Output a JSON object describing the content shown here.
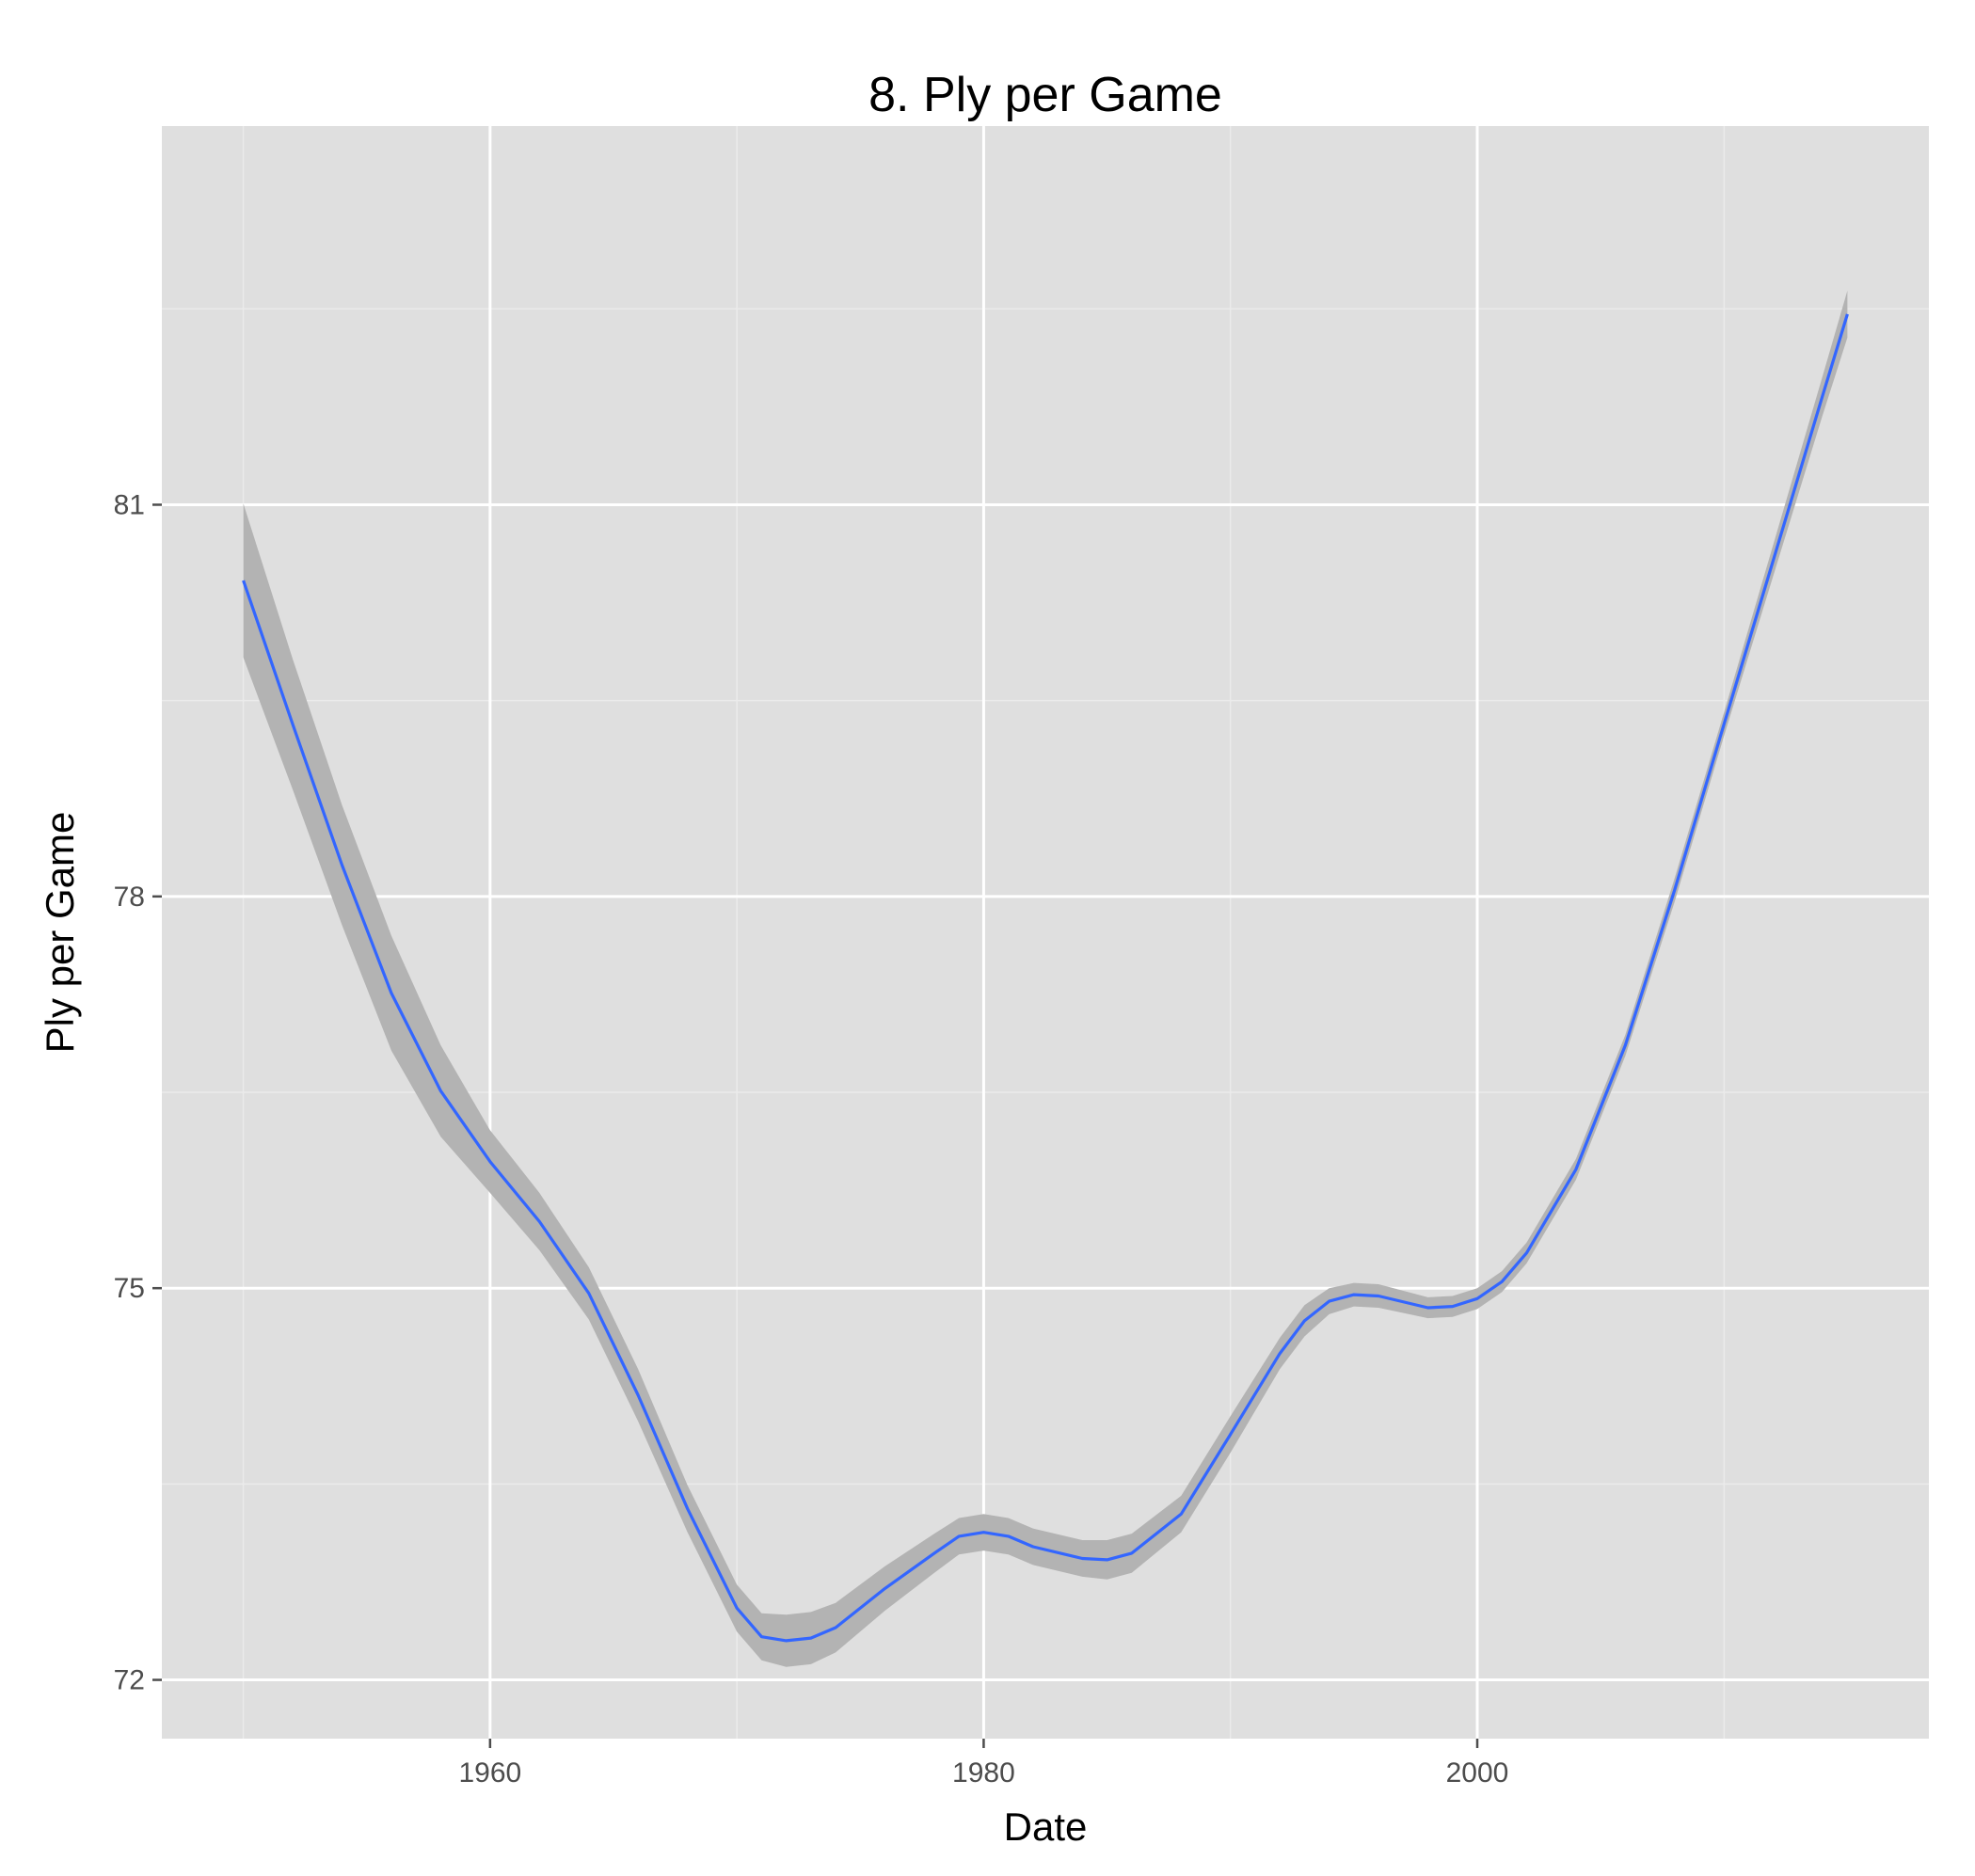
{
  "chart_data": {
    "type": "line",
    "title": "8. Ply per Game",
    "xlabel": "Date",
    "ylabel": "Ply per Game",
    "xlim": [
      1946.7,
      2018.3
    ],
    "ylim": [
      71.55,
      83.9
    ],
    "x_ticks": [
      1960,
      1980,
      2000
    ],
    "x_tick_labels": [
      "1960",
      "1980",
      "2000"
    ],
    "y_ticks": [
      72,
      75,
      78,
      81
    ],
    "y_tick_labels": [
      "72",
      "75",
      "78",
      "81"
    ],
    "grid": true,
    "legend": "none",
    "series": [
      {
        "x": [
          1950,
          1952,
          1954,
          1956,
          1958,
          1960,
          1962,
          1964,
          1966,
          1968,
          1970,
          1971,
          1972,
          1973,
          1974,
          1976,
          1978,
          1979,
          1980,
          1981,
          1982,
          1984,
          1985,
          1986,
          1988,
          1990,
          1992,
          1993,
          1994,
          1995,
          1996,
          1998,
          1999,
          2000,
          2001,
          2002,
          2004,
          2006,
          2008,
          2010,
          2012,
          2014,
          2015
        ],
        "y": [
          80.42,
          79.32,
          78.24,
          77.26,
          76.51,
          75.97,
          75.51,
          74.96,
          74.18,
          73.31,
          72.55,
          72.33,
          72.3,
          72.32,
          72.4,
          72.7,
          72.97,
          73.1,
          73.13,
          73.1,
          73.02,
          72.93,
          72.92,
          72.97,
          73.27,
          73.88,
          74.5,
          74.75,
          74.9,
          74.95,
          74.94,
          74.85,
          74.86,
          74.92,
          75.05,
          75.27,
          75.91,
          76.86,
          78.05,
          79.32,
          80.58,
          81.84,
          82.46
        ],
        "ci_lower": [
          79.83,
          78.82,
          77.78,
          76.82,
          76.16,
          75.73,
          75.29,
          74.76,
          73.98,
          73.13,
          72.37,
          72.15,
          72.1,
          72.12,
          72.21,
          72.53,
          72.82,
          72.96,
          72.99,
          72.96,
          72.88,
          72.79,
          72.77,
          72.82,
          73.13,
          73.74,
          74.38,
          74.63,
          74.8,
          74.86,
          74.85,
          74.77,
          74.78,
          74.84,
          74.97,
          75.19,
          75.83,
          76.78,
          77.96,
          79.23,
          80.46,
          81.69,
          82.28
        ],
        "ci_upper": [
          81.01,
          79.82,
          78.7,
          77.7,
          76.86,
          76.21,
          75.73,
          75.16,
          74.38,
          73.49,
          72.73,
          72.51,
          72.5,
          72.52,
          72.59,
          72.87,
          73.12,
          73.24,
          73.27,
          73.24,
          73.16,
          73.07,
          73.07,
          73.12,
          73.41,
          74.02,
          74.62,
          74.87,
          75.0,
          75.04,
          75.03,
          74.93,
          74.94,
          75.0,
          75.13,
          75.35,
          75.99,
          76.94,
          78.14,
          79.41,
          80.7,
          81.99,
          82.64
        ],
        "color": "#3366ff"
      }
    ],
    "colors": {
      "panel_background": "#dfdfdf",
      "grid_major": "#ffffff",
      "grid_minor": "#ebebeb",
      "ribbon": "#b3b3b3",
      "line": "#3366ff",
      "tick_label": "#4d4d4d"
    }
  }
}
